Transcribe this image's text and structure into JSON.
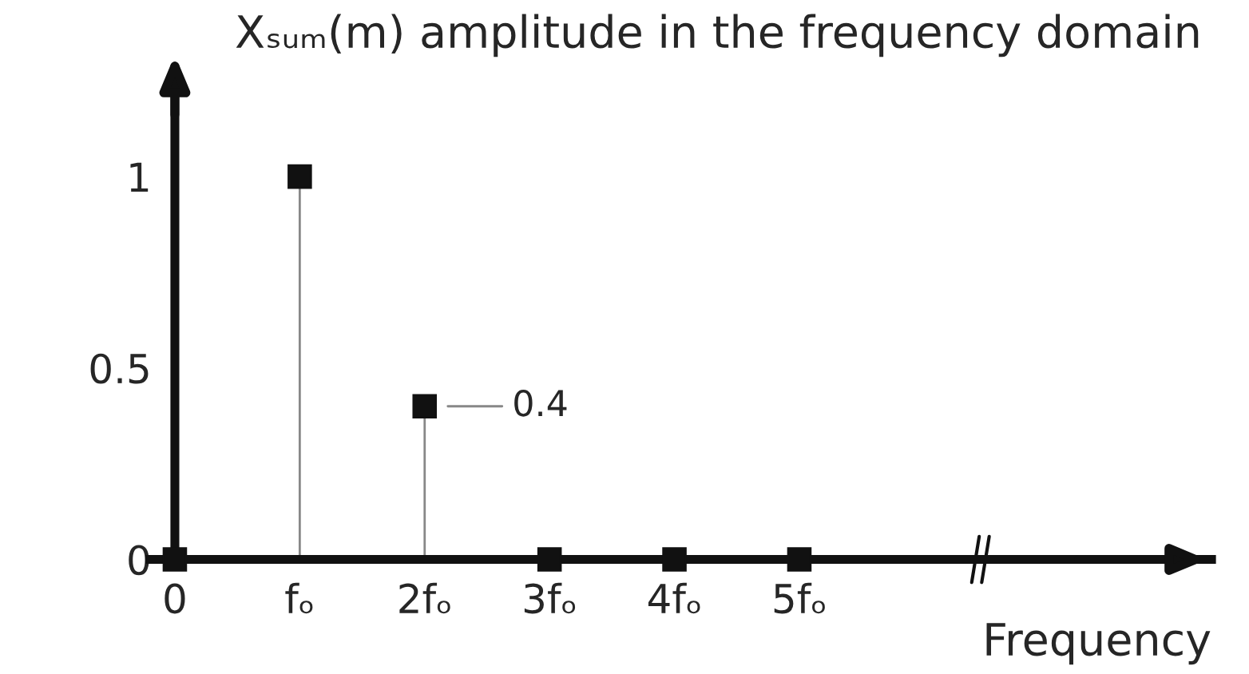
{
  "chart_data": {
    "type": "lollipop",
    "title": "Xₛᵤₘ(m) amplitude in the frequency domain",
    "xlabel": "Frequency",
    "categories": [
      "0",
      "fₒ",
      "2fₒ",
      "3fₒ",
      "4fₒ",
      "5fₒ"
    ],
    "series": [
      {
        "color": "#111111",
        "values": [
          0,
          1,
          0.4,
          0,
          0,
          0
        ]
      }
    ],
    "ylim": [
      0,
      1.25
    ],
    "yticks": [
      0,
      0.5,
      1
    ],
    "marker": "square",
    "legend": false,
    "annotations": [
      {
        "text": "0.4",
        "x": "2fₒ",
        "y": 0.4
      }
    ]
  }
}
